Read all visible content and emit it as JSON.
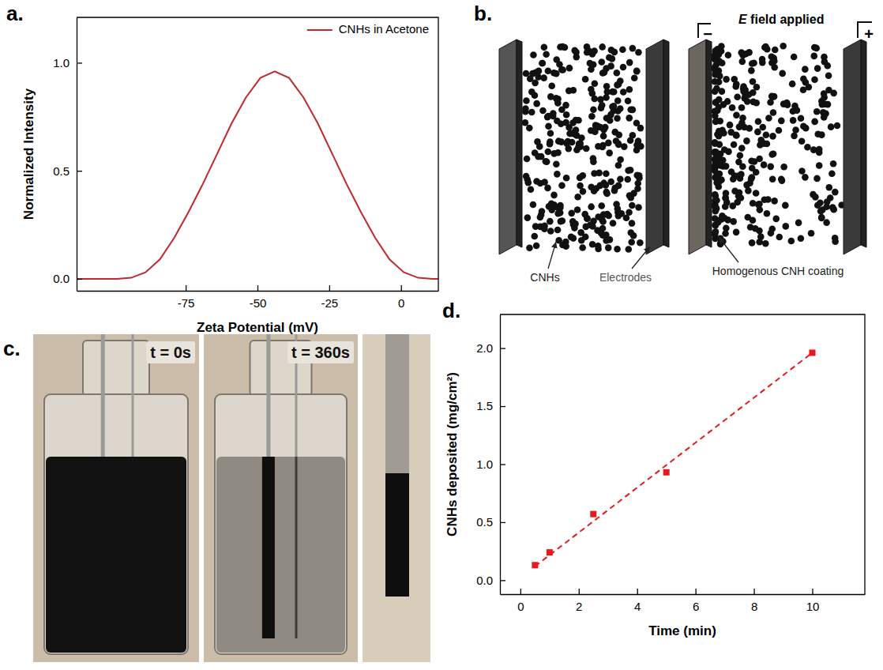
{
  "chart_data": [
    {
      "panel_label": "a.",
      "type": "line",
      "x_label": "Zeta Potential (mV)",
      "y_label": "Normalized Intensity",
      "x": [
        -113,
        -99,
        -94,
        -89,
        -84,
        -79,
        -74,
        -69,
        -64,
        -59,
        -54,
        -49,
        -44,
        -39,
        -34,
        -29,
        -24,
        -19,
        -14,
        -9,
        -4,
        1,
        6,
        11,
        13
      ],
      "series": [
        {
          "name": "CNHs in Acetone",
          "color": "#c1272d",
          "values": [
            0,
            0,
            0.005,
            0.03,
            0.09,
            0.19,
            0.31,
            0.44,
            0.58,
            0.72,
            0.84,
            0.93,
            0.96,
            0.93,
            0.84,
            0.72,
            0.58,
            0.44,
            0.31,
            0.19,
            0.09,
            0.03,
            0.005,
            0,
            0
          ]
        }
      ],
      "xlim": [
        -113,
        13
      ],
      "xticks": [
        -75,
        -50,
        -25,
        0
      ],
      "ylim": [
        -0.055,
        1.21
      ],
      "yticks": [
        {
          "value": 0,
          "label": "0.0"
        },
        {
          "value": 0.5,
          "label": "0.5"
        },
        {
          "value": 1,
          "label": "1.0"
        }
      ],
      "legend": "upper right",
      "grid": false
    },
    {
      "panel_label": "d.",
      "type": "scatter",
      "x_label": "Time (min)",
      "y_label": "CNHs deposited (mg/cm²)",
      "x": [
        0.5,
        1,
        2.5,
        5,
        10
      ],
      "series": [
        {
          "type": "scatter",
          "marker": "square",
          "color": "#e41a1c",
          "values": [
            0.13,
            0.24,
            0.57,
            0.93,
            1.96
          ]
        },
        {
          "type": "line",
          "line_style": "dashed",
          "color": "#e41a1c",
          "x": [
            0.5,
            10
          ],
          "values": [
            0.12,
            1.96
          ]
        }
      ],
      "xlim": [
        -0.7,
        11.8
      ],
      "xticks": [
        0,
        2,
        4,
        6,
        8,
        10
      ],
      "ylim": [
        -0.12,
        2.29
      ],
      "yticks": [
        {
          "value": 0,
          "label": "0.0"
        },
        {
          "value": 0.5,
          "label": "0.5"
        },
        {
          "value": 1,
          "label": "1.0"
        },
        {
          "value": 1.5,
          "label": "1.5"
        },
        {
          "value": 2,
          "label": "2.0"
        }
      ],
      "grid": false
    }
  ],
  "diagram": {
    "panel_label": "b.",
    "field_label": "E field applied",
    "polarity": [
      "−",
      "+"
    ],
    "labels": {
      "particles": "CNHs",
      "electrodes": "Electrodes",
      "coating": "Homogenous CNH coating"
    }
  },
  "photos": {
    "panel_label": "c.",
    "captions": [
      "t = 0s",
      "t = 360s"
    ]
  }
}
